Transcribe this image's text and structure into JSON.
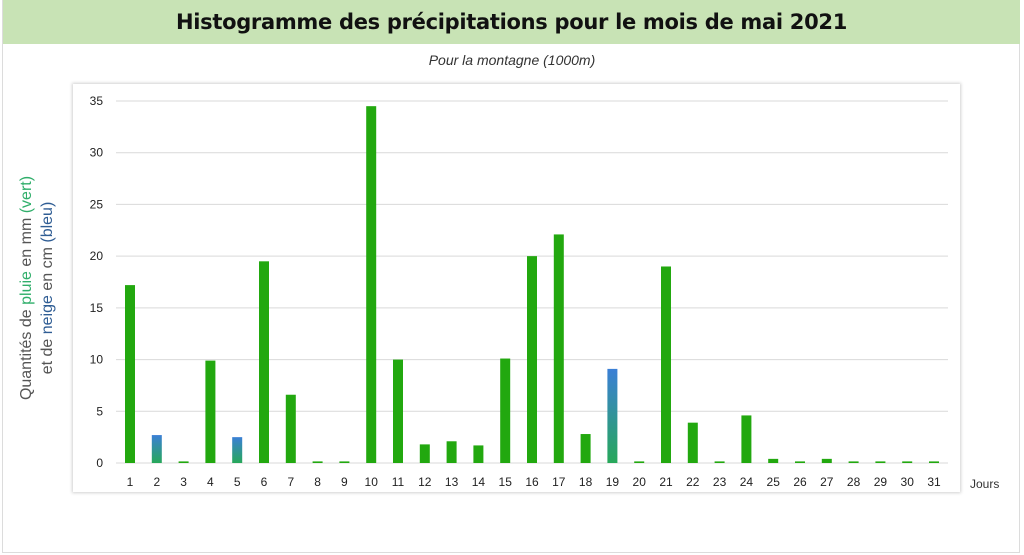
{
  "chart_data": {
    "type": "bar",
    "title": "Histogramme des précipitations pour le mois de mai 2021",
    "subtitle": "Pour la montagne (1000m)",
    "ylabel": {
      "line1_prefix": "Quantités de ",
      "line1_rain": "pluie",
      "line1_mid": " en mm ",
      "line1_rain_unit": "(vert)",
      "line2_prefix": "et de ",
      "line2_snow": "neige",
      "line2_mid": " en cm ",
      "line2_snow_unit": "(bleu)"
    },
    "xlabel": "Jours",
    "ylim": [
      0,
      35
    ],
    "yticks": [
      0,
      5,
      10,
      15,
      20,
      25,
      30,
      35
    ],
    "grid": true,
    "colors": {
      "rain": "#22a80f",
      "snow": "#3b7fd6",
      "grid": "#d9d9d9"
    },
    "categories": [
      "1",
      "2",
      "3",
      "4",
      "5",
      "6",
      "7",
      "8",
      "9",
      "10",
      "11",
      "12",
      "13",
      "14",
      "15",
      "16",
      "17",
      "18",
      "19",
      "20",
      "21",
      "22",
      "23",
      "24",
      "25",
      "26",
      "27",
      "28",
      "29",
      "30",
      "31"
    ],
    "values": [
      17.2,
      2.7,
      0.1,
      9.9,
      2.5,
      19.5,
      6.6,
      0.1,
      0.1,
      34.5,
      10.0,
      1.8,
      2.1,
      1.7,
      10.1,
      20.0,
      22.1,
      2.8,
      9.1,
      0.1,
      19.0,
      3.9,
      0.1,
      4.6,
      0.4,
      0.1,
      0.4,
      0.1,
      0.1,
      0.1,
      0.1
    ],
    "types": [
      "rain",
      "snow",
      "rain",
      "rain",
      "snow",
      "rain",
      "rain",
      "rain",
      "rain",
      "rain",
      "rain",
      "rain",
      "rain",
      "rain",
      "rain",
      "rain",
      "rain",
      "rain",
      "snow",
      "rain",
      "rain",
      "rain",
      "rain",
      "rain",
      "rain",
      "rain",
      "rain",
      "rain",
      "rain",
      "rain",
      "rain"
    ]
  }
}
